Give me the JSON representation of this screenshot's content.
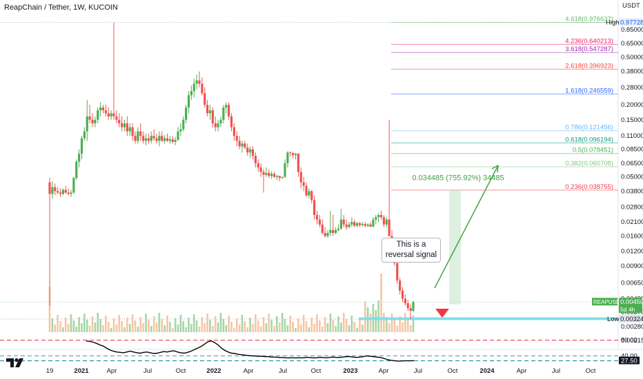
{
  "title": "ReapChain / Tether, 1W, KUCOIN",
  "unit": "USDT",
  "callout_text": "This is a reversal signal",
  "measure_label": "0.034485 (755.92%) 34485",
  "colors": {
    "up": "#26a69a",
    "up_body": "#4caf50",
    "down": "#ef5350",
    "vol_up": "#a5d6a7",
    "vol_down": "#f5c6a5",
    "support": "#80deea",
    "arrow": "#43a047",
    "rsi": "#000000"
  },
  "chart_data": {
    "type": "candlestick",
    "title": "ReapChain / Tether, 1W, KUCOIN",
    "y_scale": "log",
    "y_ticks": [
      "0.850000",
      "0.650000",
      "0.500000",
      "0.380000",
      "0.280000",
      "0.200000",
      "0.150000",
      "0.110000",
      "0.085000",
      "0.065000",
      "0.050000",
      "0.038000",
      "0.028000",
      "0.021000",
      "0.016000",
      "0.012000",
      "0.009000",
      "0.006500",
      "0.004800",
      "0.003700",
      "0.002800",
      "0.002150"
    ],
    "x_ticks": [
      "19",
      "2021",
      "Apr",
      "Jul",
      "Oct",
      "2022",
      "Apr",
      "Jul",
      "Oct",
      "2023",
      "Apr",
      "Jul",
      "Oct",
      "2024",
      "Apr",
      "Jul",
      "Oct"
    ],
    "price_labels": [
      {
        "name": "High",
        "value": "0.977284"
      },
      {
        "name": "REAPUSDT",
        "value": "0.004503",
        "sub": "5d 4h"
      },
      {
        "name": "Low",
        "value": "0.003246"
      }
    ],
    "fib_levels": [
      {
        "label": "4.618(0.976637)",
        "value": 0.976637,
        "color": "#66bb6a"
      },
      {
        "label": "4.236(0.640213)",
        "value": 0.640213,
        "color": "#e91e63"
      },
      {
        "label": "3.618(0.547287)",
        "value": 0.547287,
        "color": "#9c27b0"
      },
      {
        "label": "2.618(0.396923)",
        "value": 0.396923,
        "color": "#f44336"
      },
      {
        "label": "1.618(0.246559)",
        "value": 0.246559,
        "color": "#2962ff"
      },
      {
        "label": "0.786(0.121456)",
        "value": 0.121456,
        "color": "#64b5f6"
      },
      {
        "label": "0.618(0.096194)",
        "value": 0.096194,
        "color": "#089981"
      },
      {
        "label": "0.5(0.078451)",
        "value": 0.078451,
        "color": "#4caf50"
      },
      {
        "label": "0.382(0.060708)",
        "value": 0.060708,
        "color": "#81c784"
      },
      {
        "label": "0.236(0.038755)",
        "value": 0.038755,
        "color": "#f23645"
      }
    ],
    "candles": [
      [
        0.045,
        0.049,
        0.0042,
        0.036
      ],
      [
        0.036,
        0.046,
        0.033,
        0.041
      ],
      [
        0.041,
        0.044,
        0.035,
        0.038
      ],
      [
        0.038,
        0.041,
        0.036,
        0.037
      ],
      [
        0.037,
        0.04,
        0.034,
        0.036
      ],
      [
        0.036,
        0.04,
        0.035,
        0.039
      ],
      [
        0.039,
        0.042,
        0.036,
        0.037
      ],
      [
        0.037,
        0.04,
        0.035,
        0.036
      ],
      [
        0.036,
        0.039,
        0.034,
        0.037
      ],
      [
        0.037,
        0.05,
        0.036,
        0.049
      ],
      [
        0.049,
        0.07,
        0.047,
        0.067
      ],
      [
        0.067,
        0.085,
        0.06,
        0.078
      ],
      [
        0.078,
        0.11,
        0.07,
        0.105
      ],
      [
        0.105,
        0.13,
        0.1,
        0.12
      ],
      [
        0.12,
        0.22,
        0.1,
        0.16
      ],
      [
        0.16,
        0.2,
        0.14,
        0.15
      ],
      [
        0.15,
        0.17,
        0.13,
        0.14
      ],
      [
        0.14,
        0.16,
        0.13,
        0.15
      ],
      [
        0.15,
        0.19,
        0.14,
        0.18
      ],
      [
        0.18,
        0.21,
        0.16,
        0.19
      ],
      [
        0.19,
        0.2,
        0.17,
        0.18
      ],
      [
        0.18,
        0.2,
        0.16,
        0.17
      ],
      [
        0.17,
        0.19,
        0.15,
        0.16
      ],
      [
        0.16,
        0.18,
        0.15,
        0.17
      ],
      [
        0.17,
        0.97,
        0.15,
        0.16
      ],
      [
        0.16,
        0.18,
        0.14,
        0.15
      ],
      [
        0.15,
        0.17,
        0.13,
        0.14
      ],
      [
        0.14,
        0.16,
        0.12,
        0.13
      ],
      [
        0.13,
        0.15,
        0.12,
        0.14
      ],
      [
        0.14,
        0.16,
        0.11,
        0.12
      ],
      [
        0.12,
        0.14,
        0.11,
        0.13
      ],
      [
        0.13,
        0.14,
        0.1,
        0.11
      ],
      [
        0.11,
        0.12,
        0.095,
        0.1
      ],
      [
        0.1,
        0.13,
        0.095,
        0.12
      ],
      [
        0.12,
        0.14,
        0.1,
        0.11
      ],
      [
        0.11,
        0.12,
        0.095,
        0.1
      ],
      [
        0.1,
        0.115,
        0.092,
        0.105
      ],
      [
        0.105,
        0.115,
        0.095,
        0.1
      ],
      [
        0.1,
        0.12,
        0.095,
        0.11
      ],
      [
        0.11,
        0.125,
        0.1,
        0.105
      ],
      [
        0.105,
        0.115,
        0.095,
        0.1
      ],
      [
        0.1,
        0.12,
        0.09,
        0.11
      ],
      [
        0.11,
        0.12,
        0.098,
        0.1
      ],
      [
        0.1,
        0.112,
        0.095,
        0.105
      ],
      [
        0.105,
        0.115,
        0.098,
        0.1
      ],
      [
        0.1,
        0.11,
        0.095,
        0.103
      ],
      [
        0.103,
        0.11,
        0.095,
        0.098
      ],
      [
        0.098,
        0.108,
        0.092,
        0.102
      ],
      [
        0.102,
        0.13,
        0.1,
        0.12
      ],
      [
        0.12,
        0.14,
        0.11,
        0.125
      ],
      [
        0.125,
        0.16,
        0.12,
        0.15
      ],
      [
        0.15,
        0.2,
        0.14,
        0.19
      ],
      [
        0.19,
        0.26,
        0.17,
        0.24
      ],
      [
        0.24,
        0.29,
        0.22,
        0.26
      ],
      [
        0.26,
        0.33,
        0.23,
        0.3
      ],
      [
        0.3,
        0.36,
        0.27,
        0.32
      ],
      [
        0.32,
        0.38,
        0.28,
        0.3
      ],
      [
        0.3,
        0.34,
        0.24,
        0.25
      ],
      [
        0.25,
        0.28,
        0.19,
        0.2
      ],
      [
        0.2,
        0.22,
        0.16,
        0.17
      ],
      [
        0.17,
        0.2,
        0.15,
        0.18
      ],
      [
        0.18,
        0.19,
        0.13,
        0.14
      ],
      [
        0.14,
        0.16,
        0.12,
        0.13
      ],
      [
        0.13,
        0.15,
        0.12,
        0.14
      ],
      [
        0.14,
        0.16,
        0.13,
        0.15
      ],
      [
        0.15,
        0.2,
        0.14,
        0.19
      ],
      [
        0.19,
        0.21,
        0.17,
        0.2
      ],
      [
        0.2,
        0.21,
        0.15,
        0.16
      ],
      [
        0.16,
        0.17,
        0.12,
        0.13
      ],
      [
        0.13,
        0.14,
        0.1,
        0.11
      ],
      [
        0.11,
        0.12,
        0.09,
        0.1
      ],
      [
        0.1,
        0.11,
        0.085,
        0.09
      ],
      [
        0.09,
        0.1,
        0.08,
        0.095
      ],
      [
        0.095,
        0.1,
        0.085,
        0.088
      ],
      [
        0.088,
        0.095,
        0.075,
        0.08
      ],
      [
        0.08,
        0.09,
        0.072,
        0.085
      ],
      [
        0.085,
        0.09,
        0.07,
        0.075
      ],
      [
        0.075,
        0.08,
        0.06,
        0.065
      ],
      [
        0.065,
        0.07,
        0.055,
        0.06
      ],
      [
        0.06,
        0.065,
        0.05,
        0.055
      ],
      [
        0.055,
        0.058,
        0.037,
        0.052
      ],
      [
        0.052,
        0.06,
        0.05,
        0.054
      ],
      [
        0.054,
        0.058,
        0.049,
        0.051
      ],
      [
        0.051,
        0.056,
        0.048,
        0.053
      ],
      [
        0.053,
        0.055,
        0.049,
        0.05
      ],
      [
        0.05,
        0.052,
        0.047,
        0.051
      ],
      [
        0.051,
        0.05,
        0.046,
        0.049
      ],
      [
        0.049,
        0.05,
        0.048,
        0.05
      ],
      [
        0.05,
        0.07,
        0.049,
        0.065
      ],
      [
        0.065,
        0.082,
        0.06,
        0.08
      ],
      [
        0.08,
        0.082,
        0.074,
        0.079
      ],
      [
        0.079,
        0.081,
        0.072,
        0.076
      ],
      [
        0.076,
        0.079,
        0.07,
        0.078
      ],
      [
        0.078,
        0.079,
        0.05,
        0.055
      ],
      [
        0.055,
        0.06,
        0.04,
        0.045
      ],
      [
        0.045,
        0.05,
        0.038,
        0.042
      ],
      [
        0.042,
        0.045,
        0.034,
        0.035
      ],
      [
        0.035,
        0.04,
        0.033,
        0.038
      ],
      [
        0.038,
        0.039,
        0.03,
        0.032
      ],
      [
        0.032,
        0.035,
        0.022,
        0.024
      ],
      [
        0.024,
        0.026,
        0.02,
        0.022
      ],
      [
        0.022,
        0.024,
        0.019,
        0.02
      ],
      [
        0.02,
        0.022,
        0.0165,
        0.017
      ],
      [
        0.017,
        0.019,
        0.0155,
        0.016
      ],
      [
        0.016,
        0.018,
        0.0155,
        0.017
      ],
      [
        0.017,
        0.026,
        0.016,
        0.018
      ],
      [
        0.018,
        0.024,
        0.016,
        0.017
      ],
      [
        0.017,
        0.019,
        0.0165,
        0.018
      ],
      [
        0.018,
        0.02,
        0.0175,
        0.0185
      ],
      [
        0.0185,
        0.027,
        0.018,
        0.022
      ],
      [
        0.022,
        0.024,
        0.019,
        0.02
      ],
      [
        0.02,
        0.022,
        0.018,
        0.019
      ],
      [
        0.019,
        0.021,
        0.0185,
        0.02
      ],
      [
        0.02,
        0.023,
        0.019,
        0.021
      ],
      [
        0.021,
        0.022,
        0.019,
        0.0195
      ],
      [
        0.0195,
        0.021,
        0.019,
        0.0205
      ],
      [
        0.0205,
        0.021,
        0.019,
        0.0198
      ],
      [
        0.0198,
        0.021,
        0.0192,
        0.0202
      ],
      [
        0.0202,
        0.021,
        0.019,
        0.0195
      ],
      [
        0.0195,
        0.0205,
        0.019,
        0.02
      ],
      [
        0.02,
        0.021,
        0.019,
        0.0192
      ],
      [
        0.0192,
        0.023,
        0.019,
        0.022
      ],
      [
        0.022,
        0.024,
        0.02,
        0.023
      ],
      [
        0.023,
        0.025,
        0.021,
        0.024
      ],
      [
        0.024,
        0.026,
        0.022,
        0.023
      ],
      [
        0.023,
        0.024,
        0.019,
        0.02
      ],
      [
        0.02,
        0.023,
        0.019,
        0.022
      ],
      [
        0.022,
        0.15,
        0.016,
        0.016
      ],
      [
        0.016,
        0.018,
        0.012,
        0.013
      ],
      [
        0.013,
        0.014,
        0.009,
        0.0095
      ],
      [
        0.0095,
        0.01,
        0.0064,
        0.0068
      ],
      [
        0.0068,
        0.0072,
        0.0052,
        0.0056
      ],
      [
        0.0056,
        0.006,
        0.0045,
        0.0048
      ],
      [
        0.0048,
        0.0052,
        0.0042,
        0.0044
      ],
      [
        0.0044,
        0.0047,
        0.0038,
        0.004
      ],
      [
        0.004,
        0.0043,
        0.00325,
        0.0038
      ],
      [
        0.0038,
        0.0046,
        0.0037,
        0.0045
      ]
    ],
    "measure": {
      "from": 0.0043,
      "to": 0.038755,
      "label": "0.034485 (755.92%) 34485"
    },
    "support_zone": [
      0.00318,
      0.00335
    ],
    "rsi": {
      "levels": [
        80,
        40,
        27.5
      ],
      "labels": [
        "80.00",
        "40.00",
        "27.50"
      ],
      "values": [
        78,
        77,
        75,
        72,
        68,
        65,
        60,
        55,
        52,
        50,
        49,
        48,
        50,
        52,
        50,
        48,
        47,
        49,
        50,
        48,
        46,
        47,
        49,
        51,
        50,
        52,
        53,
        50,
        48,
        47,
        49,
        52,
        56,
        60,
        64,
        70,
        76,
        78,
        74,
        68,
        60,
        54,
        50,
        47,
        46,
        44,
        43,
        42,
        41,
        40,
        40,
        39,
        39,
        38,
        38,
        37,
        37,
        36,
        36,
        35,
        35,
        35,
        35,
        35,
        35,
        36,
        36,
        35,
        35,
        36,
        36,
        35,
        36,
        37,
        36,
        36,
        37,
        38,
        38,
        37,
        36,
        37,
        38,
        40,
        39,
        38,
        37,
        36,
        34,
        31,
        29,
        28,
        27,
        27,
        27.5,
        27.5,
        27.5,
        28
      ]
    }
  }
}
